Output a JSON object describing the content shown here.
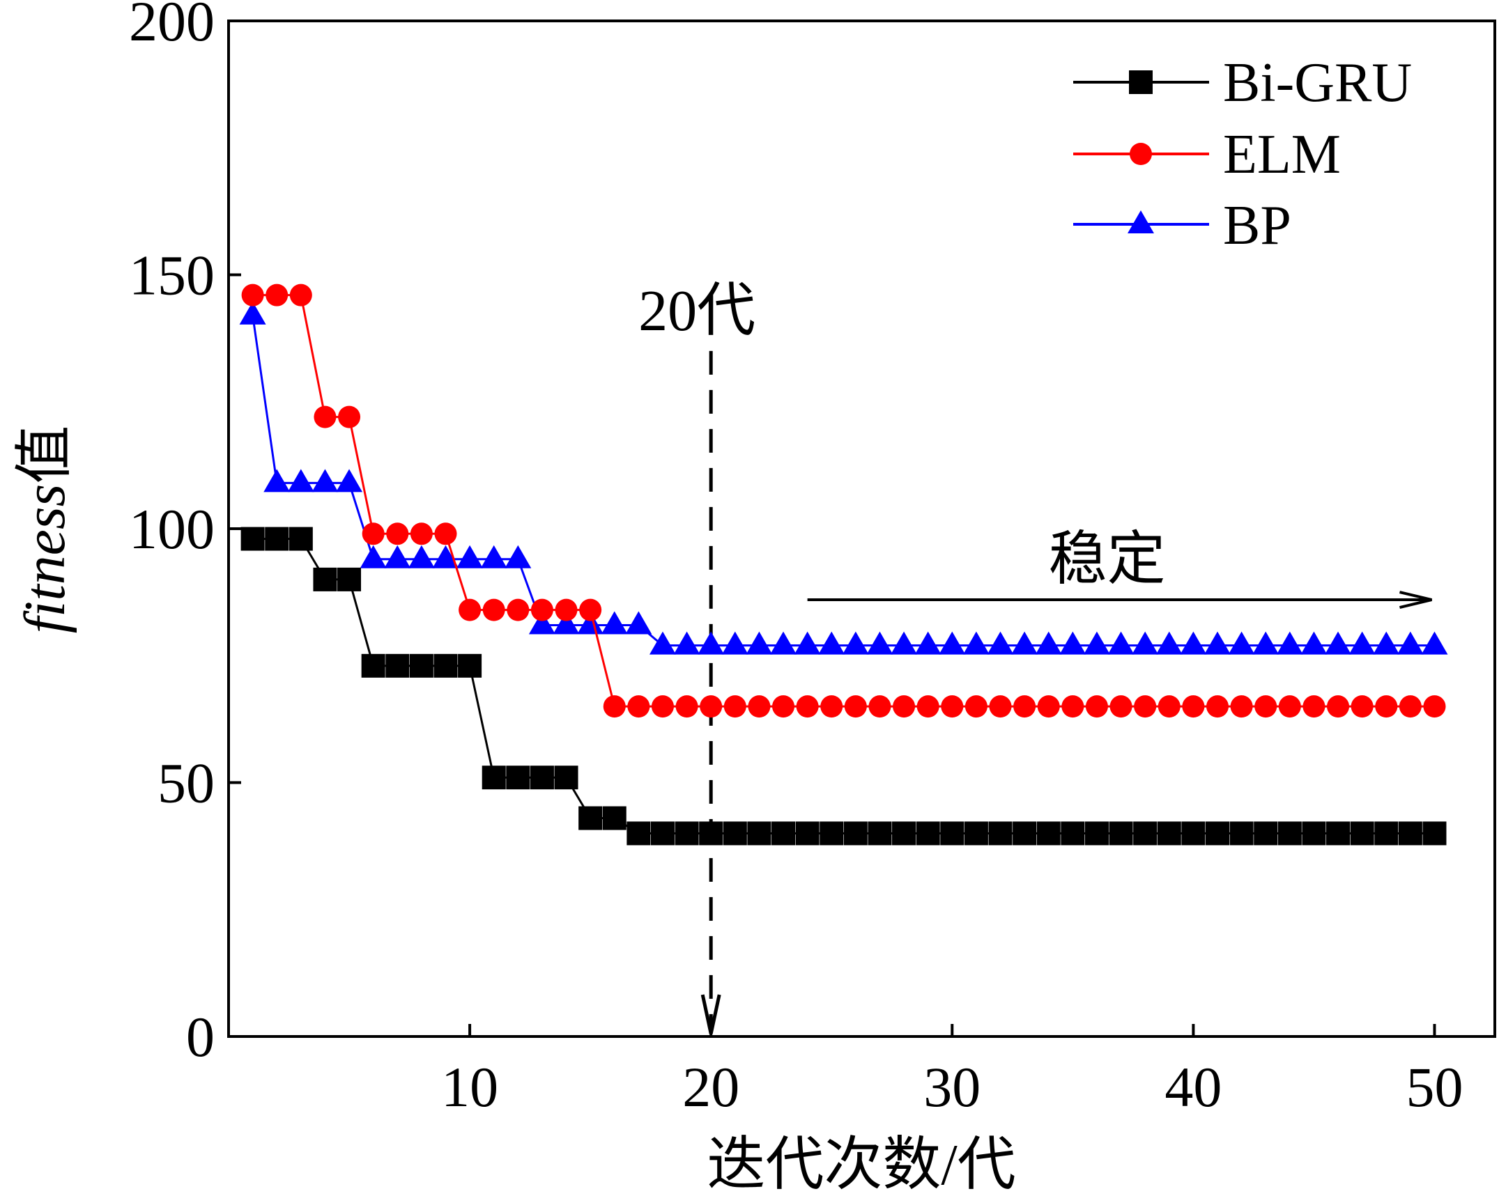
{
  "chart_data": {
    "type": "line",
    "xlabel": "迭代次数/代",
    "ylabel_italic": "fitness",
    "ylabel_suffix": "值",
    "xlim": [
      0,
      52.5
    ],
    "ylim": [
      0,
      200
    ],
    "xticks": [
      10,
      20,
      30,
      40,
      50
    ],
    "yticks": [
      0,
      50,
      100,
      150,
      200
    ],
    "grid": false,
    "legend_position": "top-right",
    "series": [
      {
        "name": "Bi-GRU",
        "marker": "square",
        "color": "#000000",
        "x": [
          1,
          2,
          3,
          4,
          5,
          6,
          7,
          8,
          9,
          10,
          11,
          12,
          13,
          14,
          15,
          16,
          17,
          18,
          19,
          20,
          21,
          22,
          23,
          24,
          25,
          26,
          27,
          28,
          29,
          30,
          31,
          32,
          33,
          34,
          35,
          36,
          37,
          38,
          39,
          40,
          41,
          42,
          43,
          44,
          45,
          46,
          47,
          48,
          49,
          50
        ],
        "values": [
          98,
          98,
          98,
          90,
          90,
          73,
          73,
          73,
          73,
          73,
          51,
          51,
          51,
          51,
          43,
          43,
          40,
          40,
          40,
          40,
          40,
          40,
          40,
          40,
          40,
          40,
          40,
          40,
          40,
          40,
          40,
          40,
          40,
          40,
          40,
          40,
          40,
          40,
          40,
          40,
          40,
          40,
          40,
          40,
          40,
          40,
          40,
          40,
          40,
          40
        ]
      },
      {
        "name": "ELM",
        "marker": "circle",
        "color": "#ff0000",
        "x": [
          1,
          2,
          3,
          4,
          5,
          6,
          7,
          8,
          9,
          10,
          11,
          12,
          13,
          14,
          15,
          16,
          17,
          18,
          19,
          20,
          21,
          22,
          23,
          24,
          25,
          26,
          27,
          28,
          29,
          30,
          31,
          32,
          33,
          34,
          35,
          36,
          37,
          38,
          39,
          40,
          41,
          42,
          43,
          44,
          45,
          46,
          47,
          48,
          49,
          50
        ],
        "values": [
          146,
          146,
          146,
          122,
          122,
          99,
          99,
          99,
          99,
          84,
          84,
          84,
          84,
          84,
          84,
          65,
          65,
          65,
          65,
          65,
          65,
          65,
          65,
          65,
          65,
          65,
          65,
          65,
          65,
          65,
          65,
          65,
          65,
          65,
          65,
          65,
          65,
          65,
          65,
          65,
          65,
          65,
          65,
          65,
          65,
          65,
          65,
          65,
          65,
          65
        ]
      },
      {
        "name": "BP",
        "marker": "triangle",
        "color": "#0000ff",
        "x": [
          1,
          2,
          3,
          4,
          5,
          6,
          7,
          8,
          9,
          10,
          11,
          12,
          13,
          14,
          15,
          16,
          17,
          18,
          19,
          20,
          21,
          22,
          23,
          24,
          25,
          26,
          27,
          28,
          29,
          30,
          31,
          32,
          33,
          34,
          35,
          36,
          37,
          38,
          39,
          40,
          41,
          42,
          43,
          44,
          45,
          46,
          47,
          48,
          49,
          50
        ],
        "values": [
          142,
          109,
          109,
          109,
          109,
          94,
          94,
          94,
          94,
          94,
          94,
          94,
          81,
          81,
          81,
          81,
          81,
          77,
          77,
          77,
          77,
          77,
          77,
          77,
          77,
          77,
          77,
          77,
          77,
          77,
          77,
          77,
          77,
          77,
          77,
          77,
          77,
          77,
          77,
          77,
          77,
          77,
          77,
          77,
          77,
          77,
          77,
          77,
          77,
          77
        ]
      }
    ],
    "annotations": [
      {
        "text": "20代",
        "type": "vertical-dashed-arrow",
        "x": 20,
        "y_from": 135,
        "y_to": 0
      },
      {
        "text": "稳定",
        "type": "horizontal-arrow",
        "y": 86,
        "x_from": 24,
        "x_to": 50
      }
    ]
  }
}
